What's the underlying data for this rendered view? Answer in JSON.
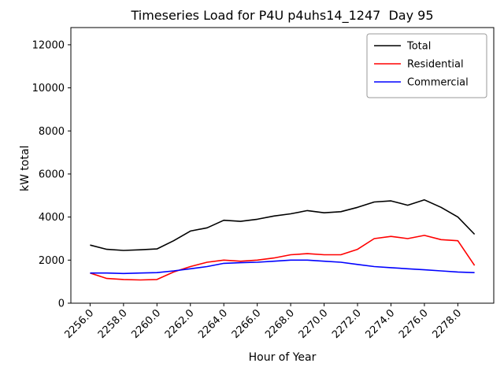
{
  "chart_data": {
    "type": "line",
    "title": "Timeseries Load for P4U p4uhs14_1247  Day 95",
    "xlabel": "Hour of Year",
    "ylabel": "kW total",
    "xlim": [
      2254.85,
      2280.15
    ],
    "ylim": [
      0,
      12800
    ],
    "grid": false,
    "legend_position": "upper right",
    "xticks": [
      2256,
      2258,
      2260,
      2262,
      2264,
      2266,
      2268,
      2270,
      2272,
      2274,
      2276,
      2278
    ],
    "xtick_labels": [
      "2256.0",
      "2258.0",
      "2260.0",
      "2262.0",
      "2264.0",
      "2266.0",
      "2268.0",
      "2270.0",
      "2272.0",
      "2274.0",
      "2276.0",
      "2278.0"
    ],
    "yticks": [
      0,
      2000,
      4000,
      6000,
      8000,
      10000,
      12000
    ],
    "ytick_labels": [
      "0",
      "2000",
      "4000",
      "6000",
      "8000",
      "10000",
      "12000"
    ],
    "x": [
      2256,
      2257,
      2258,
      2259,
      2260,
      2261,
      2262,
      2263,
      2264,
      2265,
      2266,
      2267,
      2268,
      2269,
      2270,
      2271,
      2272,
      2273,
      2274,
      2275,
      2276,
      2277,
      2278,
      2279
    ],
    "series": [
      {
        "name": "Total",
        "color": "#000000",
        "values": [
          2700,
          2500,
          2450,
          2480,
          2520,
          2900,
          3350,
          3500,
          3850,
          3800,
          3900,
          4050,
          4150,
          4300,
          4200,
          4250,
          4450,
          4700,
          4750,
          4550,
          4800,
          4450,
          4000,
          3200
        ]
      },
      {
        "name": "Residential",
        "color": "#ff0000",
        "values": [
          1400,
          1150,
          1100,
          1080,
          1100,
          1450,
          1700,
          1900,
          2000,
          1950,
          2000,
          2100,
          2250,
          2300,
          2250,
          2250,
          2500,
          3000,
          3100,
          3000,
          3150,
          2950,
          2900,
          1750
        ]
      },
      {
        "name": "Commercial",
        "color": "#0000ff",
        "values": [
          1400,
          1400,
          1380,
          1400,
          1420,
          1500,
          1600,
          1700,
          1850,
          1880,
          1900,
          1950,
          2000,
          2000,
          1950,
          1900,
          1800,
          1700,
          1650,
          1600,
          1550,
          1500,
          1450,
          1420
        ]
      }
    ]
  }
}
